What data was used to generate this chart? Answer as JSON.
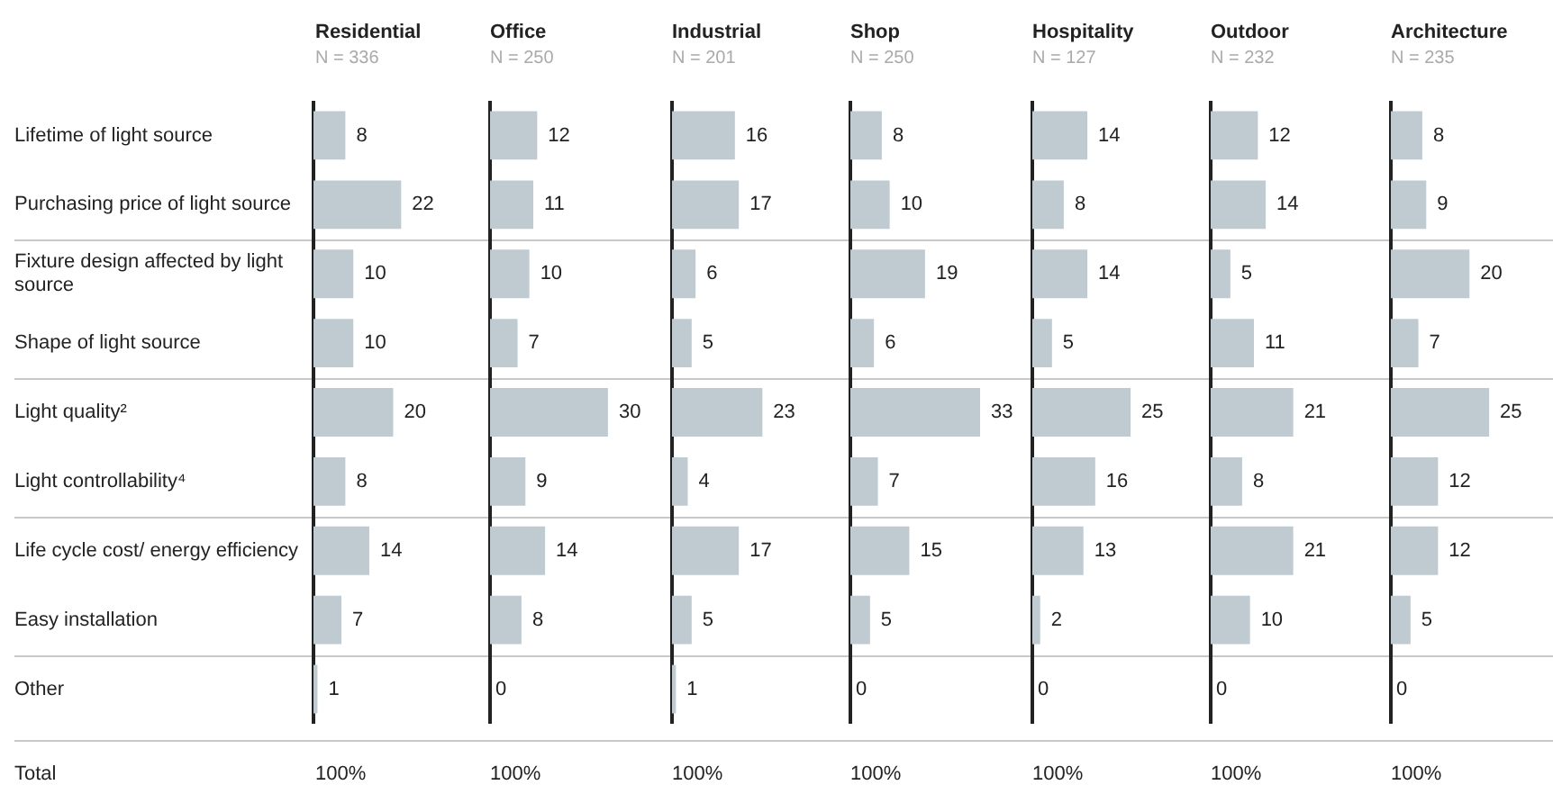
{
  "chart_data": [
    {
      "type": "bar",
      "orientation": "horizontal",
      "title": "Residential",
      "subtitle": "N = 336",
      "categories": [
        "Lifetime of light source",
        "Purchasing price of light source",
        "Fixture design affected by light source",
        "Shape of light source",
        "Light quality²",
        "Light controllability⁴",
        "Life cycle cost/ energy efficiency",
        "Easy installation",
        "Other"
      ],
      "values": [
        8,
        22,
        10,
        10,
        20,
        8,
        14,
        7,
        1
      ],
      "color": "#bfcbd1",
      "tick_labels": "y",
      "data_labels": true,
      "annotations": [
        "Total",
        "100%"
      ]
    },
    {
      "type": "bar",
      "orientation": "horizontal",
      "title": "Office",
      "subtitle": "N = 250",
      "values": [
        12,
        11,
        10,
        7,
        30,
        9,
        14,
        8,
        0
      ],
      "color": "#bfcbd1",
      "tick_labels": false,
      "data_labels": true,
      "annotations": [
        "100%"
      ]
    },
    {
      "type": "bar",
      "orientation": "horizontal",
      "title": "Industrial",
      "subtitle": "N = 201",
      "values": [
        16,
        17,
        6,
        5,
        23,
        4,
        17,
        5,
        1
      ],
      "color": "#bfcbd1",
      "tick_labels": false,
      "data_labels": true,
      "annotations": [
        "100%"
      ]
    },
    {
      "type": "bar",
      "orientation": "horizontal",
      "title": "Shop",
      "subtitle": "N = 250",
      "values": [
        8,
        10,
        19,
        6,
        33,
        7,
        15,
        5,
        0
      ],
      "color": "#bfcbd1",
      "tick_labels": false,
      "data_labels": true,
      "annotations": [
        "100%"
      ]
    },
    {
      "type": "bar",
      "orientation": "horizontal",
      "title": "Hospitality",
      "subtitle": "N = 127",
      "values": [
        14,
        8,
        14,
        5,
        25,
        16,
        13,
        2,
        0
      ],
      "color": "#bfcbd1",
      "tick_labels": false,
      "data_labels": true,
      "annotations": [
        "100%"
      ]
    },
    {
      "type": "bar",
      "orientation": "horizontal",
      "title": "Outdoor",
      "subtitle": "N = 232",
      "values": [
        12,
        14,
        5,
        11,
        21,
        8,
        21,
        10,
        0
      ],
      "color": "#bfcbd1",
      "tick_labels": false,
      "data_labels": true,
      "annotations": [
        "100%"
      ]
    },
    {
      "type": "bar",
      "orientation": "horizontal",
      "title": "Architecture",
      "subtitle": "N = 235",
      "values": [
        8,
        9,
        20,
        7,
        25,
        12,
        12,
        5,
        0
      ],
      "color": "#bfcbd1",
      "tick_labels": false,
      "data_labels": true,
      "annotations": [
        "100%"
      ]
    }
  ]
}
